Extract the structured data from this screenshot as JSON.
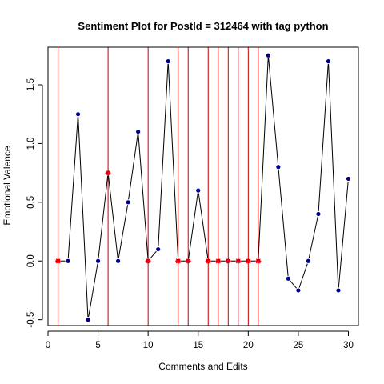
{
  "chart_data": {
    "type": "line",
    "title": "Sentiment Plot for PostId =  312464  with tag  python",
    "xlabel": "Comments and Edits",
    "ylabel": "Emotional Valence",
    "xlim": [
      0,
      31
    ],
    "ylim": [
      -0.55,
      1.82
    ],
    "xticks": [
      0,
      5,
      10,
      15,
      20,
      25,
      30
    ],
    "yticks": [
      -0.5,
      0.0,
      0.5,
      1.0,
      1.5
    ],
    "ytick_labels": [
      "-0.5",
      "0.0",
      "0.5",
      "1.0",
      "1.5"
    ],
    "x": [
      1,
      2,
      3,
      4,
      5,
      6,
      7,
      8,
      9,
      10,
      11,
      12,
      13,
      14,
      15,
      16,
      17,
      18,
      19,
      20,
      21,
      22,
      23,
      24,
      25,
      26,
      27,
      28,
      29,
      30
    ],
    "y": [
      0.0,
      0.0,
      1.25,
      -0.5,
      0.0,
      0.75,
      0.0,
      0.5,
      1.1,
      0.0,
      0.1,
      1.7,
      0.0,
      0.0,
      0.6,
      0.0,
      0.0,
      0.0,
      0.0,
      0.0,
      0.0,
      1.75,
      0.8,
      -0.15,
      -0.25,
      0.0,
      0.4,
      1.7,
      -0.25,
      0.7
    ],
    "edit_points_x": [
      1,
      6,
      10,
      13,
      14,
      16,
      17,
      18,
      19,
      20,
      21
    ],
    "vertical_lines_x": [
      1,
      6,
      10,
      13,
      14,
      16,
      17,
      18,
      19,
      20,
      21
    ],
    "colors": {
      "line": "#000000",
      "point": "#00008b",
      "edit_marker": "#ff0000",
      "vline": "#cc0000"
    }
  }
}
